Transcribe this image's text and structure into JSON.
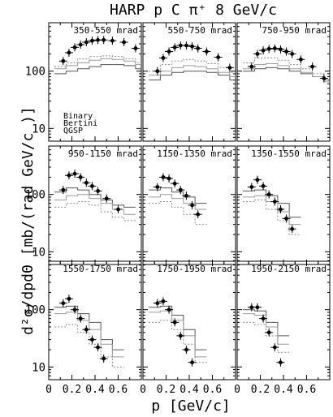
{
  "figure": {
    "title": "HARP p C π⁺ 8 GeV/c",
    "xlabel": "p [GeV/c]",
    "ylabel": "d²σ/dpdΘ [mb/(rad GeV/c )]",
    "legend": [
      "Binary",
      "Bertini",
      "QGSP"
    ],
    "x_tick_labels": [
      "0",
      "0.2",
      "0.4",
      "0.6"
    ],
    "y_tick_labels": [
      "10",
      "100"
    ]
  },
  "chart_data": [
    {
      "type": "scatter",
      "panel": "350-550 mrad",
      "scale": "log",
      "xlim": [
        0,
        0.8
      ],
      "ylim": [
        6,
        700
      ],
      "data": {
        "name": "HARP data",
        "x": [
          0.125,
          0.175,
          0.225,
          0.275,
          0.325,
          0.375,
          0.425,
          0.475,
          0.55,
          0.65,
          0.75
        ],
        "y": [
          150,
          210,
          260,
          290,
          320,
          340,
          350,
          350,
          340,
          320,
          250
        ]
      },
      "models": [
        {
          "name": "Binary",
          "x": [
            0.1,
            0.2,
            0.3,
            0.4,
            0.5,
            0.6,
            0.7,
            0.8
          ],
          "y": [
            90,
            100,
            110,
            120,
            130,
            130,
            125,
            110
          ]
        },
        {
          "name": "Bertini",
          "x": [
            0.1,
            0.2,
            0.3,
            0.4,
            0.5,
            0.6,
            0.7,
            0.8
          ],
          "y": [
            110,
            125,
            140,
            155,
            165,
            160,
            150,
            130
          ]
        },
        {
          "name": "QGSP",
          "x": [
            0.1,
            0.2,
            0.3,
            0.4,
            0.5,
            0.6,
            0.7,
            0.8
          ],
          "y": [
            120,
            140,
            165,
            180,
            185,
            180,
            165,
            140
          ]
        }
      ]
    },
    {
      "type": "scatter",
      "panel": "550-750 mrad",
      "scale": "log",
      "xlim": [
        0,
        0.8
      ],
      "ylim": [
        6,
        700
      ],
      "data": {
        "name": "HARP data",
        "x": [
          0.125,
          0.175,
          0.225,
          0.275,
          0.325,
          0.375,
          0.425,
          0.475,
          0.55,
          0.65,
          0.75
        ],
        "y": [
          100,
          170,
          220,
          260,
          280,
          280,
          270,
          250,
          220,
          175,
          115
        ]
      },
      "models": [
        {
          "name": "Binary",
          "x": [
            0.1,
            0.2,
            0.3,
            0.4,
            0.5,
            0.6,
            0.7,
            0.8
          ],
          "y": [
            70,
            85,
            95,
            100,
            100,
            95,
            85,
            70
          ]
        },
        {
          "name": "Bertini",
          "x": [
            0.1,
            0.2,
            0.3,
            0.4,
            0.5,
            0.6,
            0.7,
            0.8
          ],
          "y": [
            85,
            100,
            115,
            125,
            120,
            110,
            95,
            80
          ]
        },
        {
          "name": "QGSP",
          "x": [
            0.1,
            0.2,
            0.3,
            0.4,
            0.5,
            0.6,
            0.7,
            0.8
          ],
          "y": [
            100,
            130,
            150,
            160,
            150,
            135,
            115,
            95
          ]
        }
      ]
    },
    {
      "type": "scatter",
      "panel": "750-950 mrad",
      "scale": "log",
      "xlim": [
        0,
        0.8
      ],
      "ylim": [
        6,
        700
      ],
      "data": {
        "name": "HARP data",
        "x": [
          0.125,
          0.175,
          0.225,
          0.275,
          0.325,
          0.375,
          0.425,
          0.475,
          0.55,
          0.65,
          0.75
        ],
        "y": [
          120,
          200,
          230,
          245,
          250,
          240,
          220,
          200,
          160,
          120,
          75
        ]
      },
      "models": [
        {
          "name": "Binary",
          "x": [
            0.1,
            0.2,
            0.3,
            0.4,
            0.5,
            0.6,
            0.7,
            0.8
          ],
          "y": [
            100,
            110,
            115,
            110,
            100,
            90,
            80,
            70
          ]
        },
        {
          "name": "Bertini",
          "x": [
            0.1,
            0.2,
            0.3,
            0.4,
            0.5,
            0.6,
            0.7,
            0.8
          ],
          "y": [
            110,
            130,
            135,
            125,
            110,
            95,
            80,
            65
          ]
        },
        {
          "name": "QGSP",
          "x": [
            0.1,
            0.2,
            0.3,
            0.4,
            0.5,
            0.6,
            0.7,
            0.8
          ],
          "y": [
            140,
            170,
            170,
            155,
            130,
            110,
            90,
            70
          ]
        }
      ]
    },
    {
      "type": "scatter",
      "panel": "950-1150 mrad",
      "scale": "log",
      "xlim": [
        0,
        0.8
      ],
      "ylim": [
        6,
        700
      ],
      "data": {
        "name": "HARP data",
        "x": [
          0.125,
          0.175,
          0.225,
          0.275,
          0.325,
          0.375,
          0.425,
          0.5,
          0.6
        ],
        "y": [
          120,
          215,
          230,
          200,
          160,
          140,
          115,
          85,
          55
        ]
      },
      "models": [
        {
          "name": "Binary",
          "x": [
            0.1,
            0.2,
            0.3,
            0.4,
            0.5,
            0.6,
            0.7
          ],
          "y": [
            110,
            130,
            120,
            100,
            80,
            65,
            60
          ]
        },
        {
          "name": "Bertini",
          "x": [
            0.1,
            0.2,
            0.3,
            0.4,
            0.5,
            0.6,
            0.7
          ],
          "y": [
            80,
            95,
            100,
            85,
            70,
            55,
            45
          ]
        },
        {
          "name": "QGSP",
          "x": [
            0.1,
            0.2,
            0.3,
            0.4,
            0.5,
            0.6,
            0.7
          ],
          "y": [
            60,
            70,
            75,
            65,
            50,
            40,
            35
          ]
        }
      ]
    },
    {
      "type": "scatter",
      "panel": "1150-1350 mrad",
      "scale": "log",
      "xlim": [
        0,
        0.8
      ],
      "ylim": [
        6,
        700
      ],
      "data": {
        "name": "HARP data",
        "x": [
          0.125,
          0.175,
          0.225,
          0.275,
          0.325,
          0.375,
          0.425,
          0.475
        ],
        "y": [
          135,
          200,
          190,
          155,
          120,
          95,
          65,
          45
        ]
      },
      "models": [
        {
          "name": "Binary",
          "x": [
            0.1,
            0.2,
            0.3,
            0.4,
            0.5
          ],
          "y": [
            120,
            130,
            110,
            90,
            70
          ]
        },
        {
          "name": "Bertini",
          "x": [
            0.1,
            0.2,
            0.3,
            0.4,
            0.5
          ],
          "y": [
            90,
            100,
            85,
            70,
            55
          ]
        },
        {
          "name": "QGSP",
          "x": [
            0.1,
            0.2,
            0.3,
            0.4,
            0.5
          ],
          "y": [
            70,
            75,
            60,
            45,
            30
          ]
        }
      ]
    },
    {
      "type": "scatter",
      "panel": "1350-1550 mrad",
      "scale": "log",
      "xlim": [
        0,
        0.8
      ],
      "ylim": [
        6,
        700
      ],
      "data": {
        "name": "HARP data",
        "x": [
          0.125,
          0.175,
          0.225,
          0.275,
          0.325,
          0.375,
          0.425,
          0.475
        ],
        "y": [
          135,
          180,
          140,
          100,
          75,
          55,
          38,
          25
        ]
      },
      "models": [
        {
          "name": "Binary",
          "x": [
            0.1,
            0.2,
            0.3,
            0.4,
            0.5
          ],
          "y": [
            115,
            120,
            95,
            70,
            40
          ]
        },
        {
          "name": "Bertini",
          "x": [
            0.1,
            0.2,
            0.3,
            0.4,
            0.5
          ],
          "y": [
            90,
            95,
            75,
            50,
            30
          ]
        },
        {
          "name": "QGSP",
          "x": [
            0.1,
            0.2,
            0.3,
            0.4,
            0.5
          ],
          "y": [
            75,
            80,
            55,
            35,
            20
          ]
        }
      ]
    },
    {
      "type": "scatter",
      "panel": "1550-1750 mrad",
      "scale": "log",
      "xlim": [
        0,
        0.8
      ],
      "ylim": [
        6,
        700
      ],
      "data": {
        "name": "HARP data",
        "x": [
          0.125,
          0.175,
          0.225,
          0.275,
          0.325,
          0.375,
          0.425,
          0.475
        ],
        "y": [
          130,
          155,
          100,
          70,
          45,
          30,
          22,
          14
        ]
      },
      "models": [
        {
          "name": "Binary",
          "x": [
            0.1,
            0.2,
            0.3,
            0.4,
            0.5,
            0.6
          ],
          "y": [
            110,
            115,
            85,
            60,
            30,
            20
          ]
        },
        {
          "name": "Bertini",
          "x": [
            0.1,
            0.2,
            0.3,
            0.4,
            0.5,
            0.6
          ],
          "y": [
            85,
            90,
            65,
            45,
            25,
            15
          ]
        },
        {
          "name": "QGSP",
          "x": [
            0.1,
            0.2,
            0.3,
            0.4,
            0.5,
            0.6
          ],
          "y": [
            50,
            55,
            40,
            25,
            15,
            10
          ]
        }
      ]
    },
    {
      "type": "scatter",
      "panel": "1750-1950 mrad",
      "scale": "log",
      "xlim": [
        0,
        0.8
      ],
      "ylim": [
        6,
        700
      ],
      "data": {
        "name": "HARP data",
        "x": [
          0.125,
          0.175,
          0.225,
          0.275,
          0.325,
          0.375,
          0.425
        ],
        "y": [
          130,
          140,
          100,
          60,
          35,
          20,
          12
        ]
      },
      "models": [
        {
          "name": "Binary",
          "x": [
            0.1,
            0.2,
            0.3,
            0.4,
            0.5
          ],
          "y": [
            110,
            115,
            80,
            45,
            20
          ]
        },
        {
          "name": "Bertini",
          "x": [
            0.1,
            0.2,
            0.3,
            0.4,
            0.5
          ],
          "y": [
            90,
            95,
            65,
            35,
            15
          ]
        },
        {
          "name": "QGSP",
          "x": [
            0.1,
            0.2,
            0.3,
            0.4,
            0.5
          ],
          "y": [
            60,
            65,
            45,
            25,
            12
          ]
        }
      ]
    },
    {
      "type": "scatter",
      "panel": "1950-2150 mrad",
      "scale": "log",
      "xlim": [
        0,
        0.8
      ],
      "ylim": [
        6,
        700
      ],
      "data": {
        "name": "HARP data",
        "x": [
          0.125,
          0.175,
          0.225,
          0.275,
          0.325,
          0.375
        ],
        "y": [
          110,
          110,
          70,
          40,
          22,
          12
        ]
      },
      "models": [
        {
          "name": "Binary",
          "x": [
            0.1,
            0.2,
            0.3,
            0.4
          ],
          "y": [
            100,
            95,
            60,
            35
          ]
        },
        {
          "name": "Bertini",
          "x": [
            0.1,
            0.2,
            0.3,
            0.4
          ],
          "y": [
            85,
            80,
            50,
            25
          ]
        },
        {
          "name": "QGSP",
          "x": [
            0.1,
            0.2,
            0.3,
            0.4
          ],
          "y": [
            60,
            55,
            35,
            18
          ]
        }
      ]
    }
  ]
}
